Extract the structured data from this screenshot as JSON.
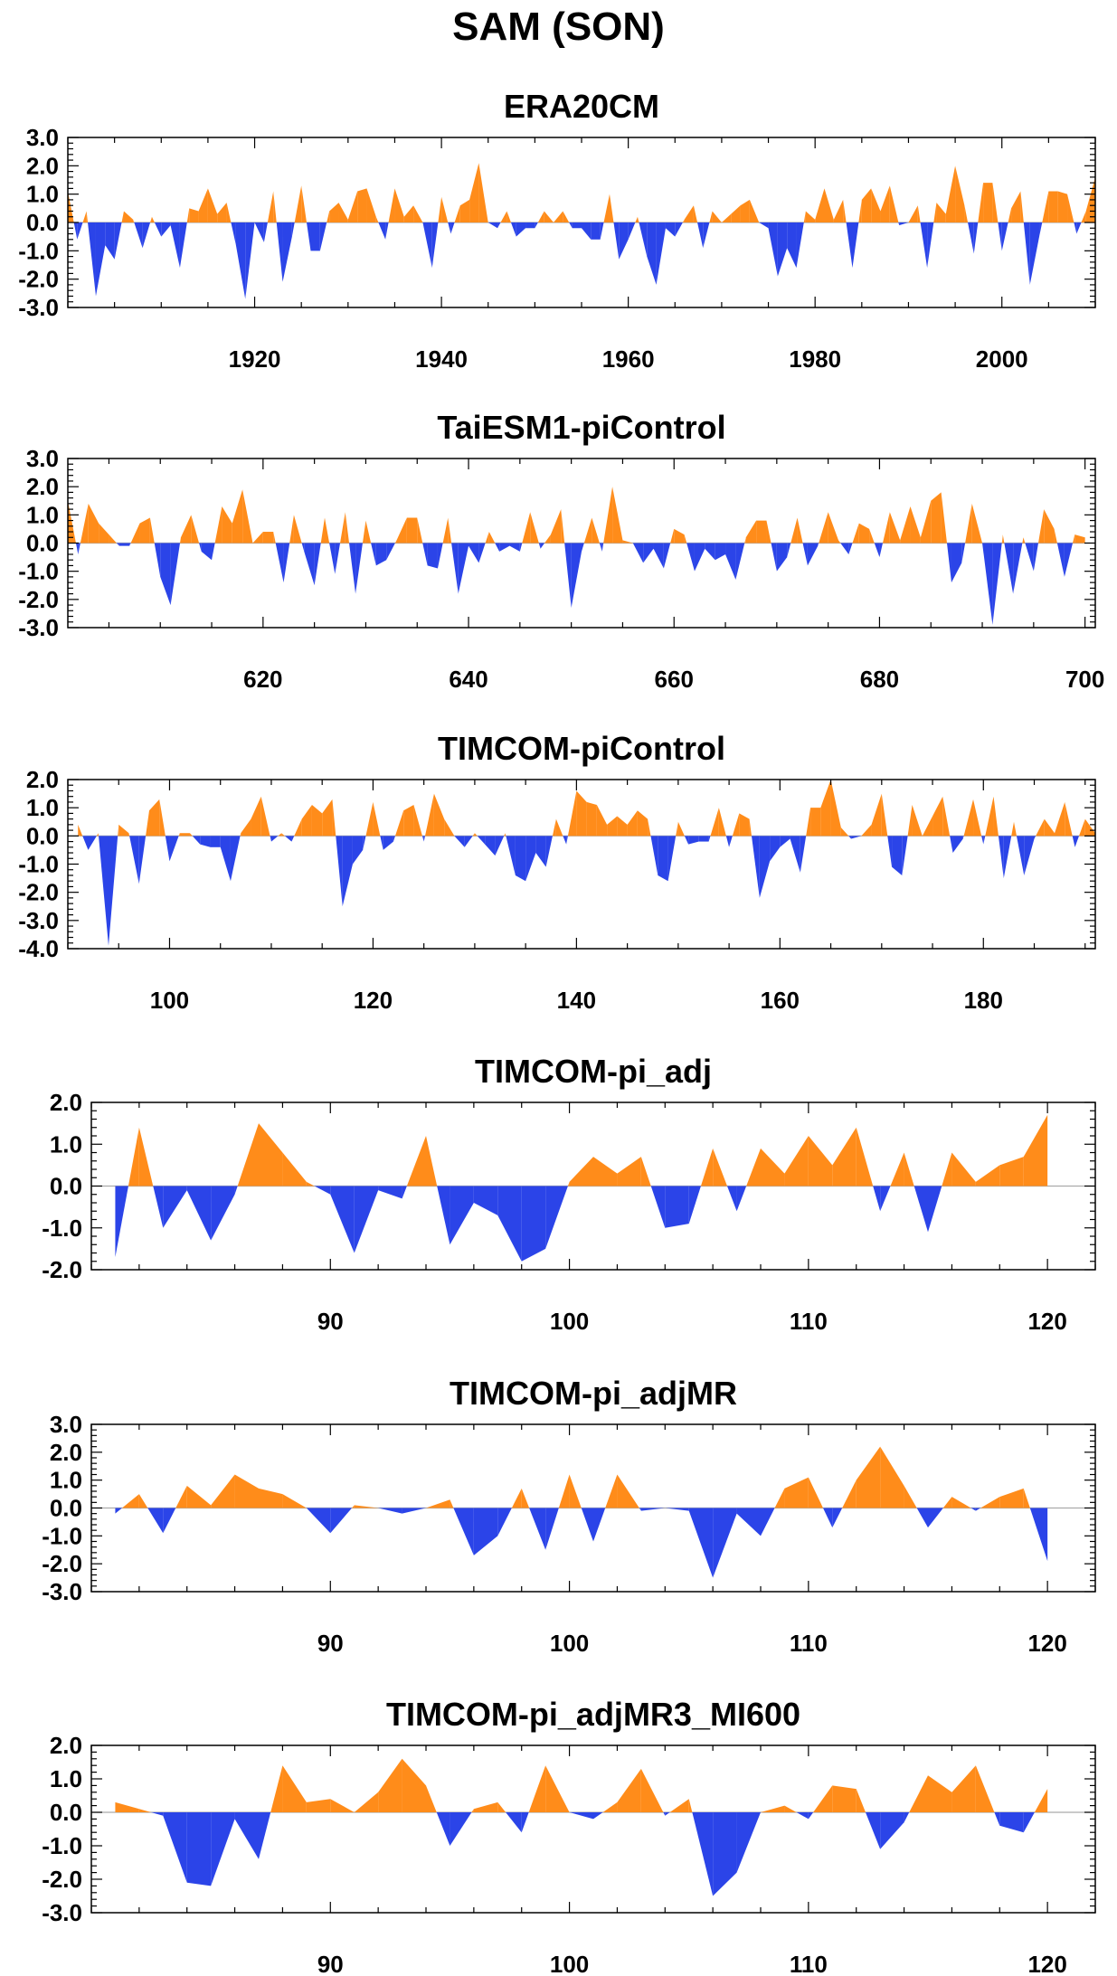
{
  "page_title": "SAM (SON)",
  "colors": {
    "positive": "#ff8c1a",
    "negative": "#2b44e8",
    "frame": "#000000",
    "zero_line": "#aaaaaa"
  },
  "chart_data": [
    {
      "type": "area",
      "title": "ERA20CM",
      "xlim": [
        1900,
        2010
      ],
      "ylim": [
        -3,
        3
      ],
      "x_ticks": [
        1920,
        1940,
        1960,
        1980,
        2000
      ],
      "y_ticks": [
        -3,
        -2,
        -1,
        0,
        1,
        2,
        3
      ],
      "x_start": 1900,
      "values": [
        1.1,
        -0.6,
        0.4,
        -2.6,
        -0.8,
        -1.3,
        0.4,
        0.1,
        -0.9,
        0.2,
        -0.5,
        -0.1,
        -1.6,
        0.5,
        0.4,
        1.2,
        0.3,
        0.7,
        -0.8,
        -2.7,
        0.0,
        -0.7,
        1.1,
        -2.1,
        -0.5,
        1.3,
        -1.0,
        -1.0,
        0.4,
        0.7,
        0.1,
        1.1,
        1.2,
        0.2,
        -0.6,
        1.2,
        0.2,
        0.6,
        0.0,
        -1.6,
        0.9,
        -0.4,
        0.6,
        0.8,
        2.1,
        0.0,
        -0.2,
        0.4,
        -0.5,
        -0.2,
        -0.2,
        0.4,
        0.0,
        0.4,
        -0.2,
        -0.2,
        -0.6,
        -0.6,
        1.0,
        -1.3,
        -0.6,
        0.2,
        -1.2,
        -2.2,
        -0.2,
        -0.5,
        0.1,
        0.6,
        -0.9,
        0.4,
        0.0,
        0.3,
        0.6,
        0.8,
        0.0,
        -0.2,
        -1.9,
        -0.9,
        -1.6,
        0.4,
        0.1,
        1.2,
        0.1,
        0.8,
        -1.6,
        0.8,
        1.2,
        0.4,
        1.3,
        -0.1,
        0.0,
        0.6,
        -1.6,
        0.7,
        0.3,
        2.0,
        0.6,
        -1.1,
        1.4,
        1.4,
        -1.0,
        0.5,
        1.1,
        -2.2,
        -0.5,
        1.1,
        1.1,
        1.0,
        -0.4,
        0.4,
        1.6
      ]
    },
    {
      "type": "area",
      "title": "TaiESM1-piControl",
      "xlim": [
        601,
        701
      ],
      "ylim": [
        -3,
        3
      ],
      "x_ticks": [
        620,
        640,
        660,
        680,
        700
      ],
      "y_ticks": [
        -3,
        -2,
        -1,
        0,
        1,
        2,
        3
      ],
      "x_start": 601,
      "values": [
        1.5,
        -0.4,
        1.4,
        0.7,
        0.3,
        -0.1,
        -0.1,
        0.7,
        0.9,
        -1.2,
        -2.2,
        0.2,
        1.0,
        -0.3,
        -0.6,
        1.3,
        0.7,
        1.9,
        0.0,
        0.4,
        0.4,
        -1.4,
        1.0,
        -0.3,
        -1.5,
        0.9,
        -1.1,
        1.1,
        -1.8,
        0.8,
        -0.8,
        -0.6,
        0.1,
        0.9,
        0.9,
        -0.8,
        -0.9,
        0.9,
        -1.8,
        -0.1,
        -0.7,
        0.4,
        -0.3,
        -0.1,
        -0.3,
        1.1,
        -0.2,
        0.3,
        1.2,
        -2.3,
        -0.3,
        0.9,
        -0.3,
        2.0,
        0.1,
        0.0,
        -0.7,
        -0.2,
        -0.9,
        0.5,
        0.3,
        -1.0,
        -0.2,
        -0.6,
        -0.4,
        -1.3,
        0.2,
        0.8,
        0.8,
        -1.0,
        -0.5,
        0.9,
        -0.8,
        -0.1,
        1.1,
        0.1,
        -0.4,
        0.7,
        0.5,
        -0.5,
        1.1,
        0.1,
        1.3,
        0.2,
        1.5,
        1.8,
        -1.4,
        -0.7,
        1.4,
        0.0,
        -2.9,
        0.3,
        -1.8,
        0.2,
        -1.0,
        1.2,
        0.5,
        -1.2,
        0.3,
        0.2
      ]
    },
    {
      "type": "area",
      "title": "TIMCOM-piControl",
      "xlim": [
        90,
        191
      ],
      "ylim": [
        -4,
        2
      ],
      "x_ticks": [
        100,
        120,
        140,
        160,
        180
      ],
      "y_ticks": [
        -4,
        -3,
        -2,
        -1,
        0,
        1,
        2
      ],
      "x_start": 91,
      "values": [
        0.4,
        -0.5,
        0.1,
        -3.9,
        0.4,
        0.1,
        -1.7,
        0.9,
        1.3,
        -0.9,
        0.1,
        0.1,
        -0.3,
        -0.4,
        -0.4,
        -1.6,
        0.1,
        0.6,
        1.4,
        -0.2,
        0.1,
        -0.2,
        0.6,
        1.1,
        0.8,
        1.3,
        -2.5,
        -1.0,
        -0.5,
        1.2,
        -0.5,
        -0.2,
        0.9,
        1.1,
        -0.2,
        1.5,
        0.6,
        0.0,
        -0.4,
        0.1,
        -0.3,
        -0.7,
        0.1,
        -1.4,
        -1.6,
        -0.6,
        -1.1,
        0.6,
        -0.3,
        1.6,
        1.2,
        1.1,
        0.4,
        0.7,
        0.4,
        0.9,
        0.6,
        -1.4,
        -1.6,
        0.5,
        -0.3,
        -0.2,
        -0.2,
        1.0,
        -0.4,
        0.8,
        0.6,
        -2.2,
        -0.9,
        -0.4,
        -0.1,
        -1.3,
        1.0,
        1.0,
        2.0,
        0.3,
        -0.1,
        0.0,
        0.4,
        1.5,
        -1.1,
        -1.4,
        1.1,
        0.0,
        0.7,
        1.4,
        -0.6,
        -0.1,
        1.3,
        -0.3,
        1.4,
        -1.5,
        0.5,
        -1.4,
        -0.1,
        0.6,
        0.1,
        1.2,
        -0.4,
        0.6,
        0.1
      ]
    },
    {
      "type": "area",
      "title": "TIMCOM-pi_adj",
      "xlim": [
        80,
        122
      ],
      "ylim": [
        -2,
        2
      ],
      "x_ticks": [
        90,
        100,
        110,
        120
      ],
      "y_ticks": [
        -2,
        -1,
        0,
        1,
        2
      ],
      "x_start": 81,
      "values": [
        -1.7,
        1.4,
        -1.0,
        -0.1,
        -1.3,
        -0.2,
        1.5,
        0.8,
        0.1,
        -0.2,
        -1.6,
        -0.1,
        -0.3,
        1.2,
        -1.4,
        -0.4,
        -0.7,
        -1.8,
        -1.5,
        0.1,
        0.7,
        0.3,
        0.7,
        -1.0,
        -0.9,
        0.9,
        -0.6,
        0.9,
        0.3,
        1.2,
        0.5,
        1.4,
        -0.6,
        0.8,
        -1.1,
        0.8,
        0.1,
        0.5,
        0.7,
        1.7
      ]
    },
    {
      "type": "area",
      "title": "TIMCOM-pi_adjMR",
      "xlim": [
        80,
        122
      ],
      "ylim": [
        -3,
        3
      ],
      "x_ticks": [
        90,
        100,
        110,
        120
      ],
      "y_ticks": [
        -3,
        -2,
        -1,
        0,
        1,
        2,
        3
      ],
      "x_start": 81,
      "values": [
        -0.2,
        0.5,
        -0.9,
        0.8,
        0.1,
        1.2,
        0.7,
        0.5,
        0.0,
        -0.9,
        0.1,
        0.0,
        -0.2,
        0.0,
        0.3,
        -1.7,
        -1.0,
        0.7,
        -1.5,
        1.2,
        -1.2,
        1.2,
        -0.1,
        0.0,
        -0.1,
        -2.5,
        -0.2,
        -1.0,
        0.7,
        1.1,
        -0.7,
        1.0,
        2.2,
        0.8,
        -0.7,
        0.4,
        -0.1,
        0.4,
        0.7,
        -1.9
      ]
    },
    {
      "type": "area",
      "title": "TIMCOM-pi_adjMR3_MI600",
      "xlim": [
        80,
        122
      ],
      "ylim": [
        -3,
        2
      ],
      "x_ticks": [
        90,
        100,
        110,
        120
      ],
      "y_ticks": [
        -3,
        -2,
        -1,
        0,
        1,
        2
      ],
      "x_start": 81,
      "values": [
        0.3,
        0.1,
        -0.1,
        -2.1,
        -2.2,
        -0.2,
        -1.4,
        1.4,
        0.3,
        0.4,
        0.0,
        0.6,
        1.6,
        0.8,
        -1.0,
        0.1,
        0.3,
        -0.6,
        1.4,
        0.0,
        -0.2,
        0.3,
        1.3,
        -0.1,
        0.4,
        -2.5,
        -1.8,
        0.0,
        0.2,
        -0.2,
        0.8,
        0.7,
        -1.1,
        -0.3,
        1.1,
        0.6,
        1.4,
        -0.4,
        -0.6,
        0.7
      ]
    }
  ]
}
